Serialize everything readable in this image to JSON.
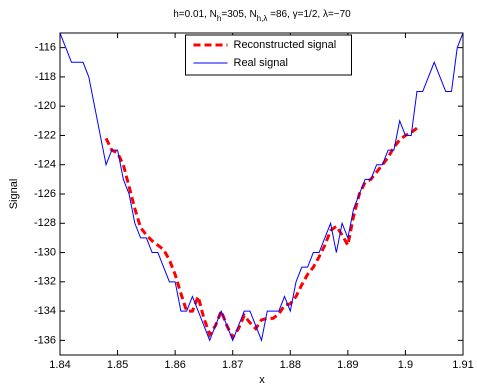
{
  "chart_data": {
    "type": "line",
    "title": [
      {
        "text": "h=0.01,  N"
      },
      {
        "text": "h",
        "sub": true
      },
      {
        "text": "=305,  N"
      },
      {
        "text": "h,λ",
        "sub": true
      },
      {
        "text": " =86,  γ=1/2,  λ=−70"
      }
    ],
    "xlabel": "x",
    "ylabel": "Signal",
    "xlim": [
      1.84,
      1.91
    ],
    "xticks": [
      1.84,
      1.85,
      1.86,
      1.87,
      1.88,
      1.89,
      1.9,
      1.91
    ],
    "ylim": [
      -137,
      -115
    ],
    "yticks": [
      -136,
      -134,
      -132,
      -130,
      -128,
      -126,
      -124,
      -122,
      -120,
      -118,
      -116
    ],
    "legend": "top",
    "series": [
      {
        "name": "Reconstructed signal",
        "color": "#ff0000",
        "style": "dashed",
        "x": [
          1.848,
          1.849,
          1.85,
          1.851,
          1.852,
          1.853,
          1.854,
          1.855,
          1.856,
          1.857,
          1.858,
          1.859,
          1.86,
          1.861,
          1.862,
          1.863,
          1.864,
          1.865,
          1.866,
          1.867,
          1.868,
          1.869,
          1.87,
          1.871,
          1.872,
          1.873,
          1.874,
          1.875,
          1.876,
          1.877,
          1.878,
          1.879,
          1.88,
          1.881,
          1.882,
          1.883,
          1.884,
          1.885,
          1.886,
          1.887,
          1.888,
          1.889,
          1.89,
          1.891,
          1.892,
          1.893,
          1.894,
          1.895,
          1.896,
          1.897,
          1.898,
          1.899,
          1.9,
          1.901,
          1.902
        ],
        "values": [
          -122.2,
          -123,
          -123.2,
          -124,
          -125.5,
          -127,
          -128.3,
          -128.8,
          -129.2,
          -129.5,
          -129.8,
          -130.5,
          -131.5,
          -132.8,
          -134,
          -134,
          -133,
          -134.5,
          -135.6,
          -135,
          -134,
          -135,
          -135.8,
          -135.2,
          -134.3,
          -134.8,
          -135.2,
          -134.6,
          -134.5,
          -134.5,
          -134.2,
          -133.6,
          -133.5,
          -133,
          -132.2,
          -131.5,
          -131,
          -130.3,
          -129.5,
          -128.5,
          -128.2,
          -128.8,
          -129.5,
          -127.5,
          -126,
          -125.2,
          -125,
          -124.5,
          -124,
          -123.5,
          -122.8,
          -122.3,
          -122,
          -121.8,
          -121.5
        ]
      },
      {
        "name": "Real signal",
        "color": "#0000ff",
        "style": "solid",
        "x": [
          1.84,
          1.841,
          1.842,
          1.843,
          1.844,
          1.845,
          1.846,
          1.847,
          1.848,
          1.849,
          1.85,
          1.851,
          1.852,
          1.853,
          1.854,
          1.855,
          1.856,
          1.857,
          1.858,
          1.859,
          1.86,
          1.861,
          1.862,
          1.863,
          1.864,
          1.865,
          1.866,
          1.867,
          1.868,
          1.869,
          1.87,
          1.871,
          1.872,
          1.873,
          1.874,
          1.875,
          1.876,
          1.877,
          1.878,
          1.879,
          1.88,
          1.881,
          1.882,
          1.883,
          1.884,
          1.885,
          1.886,
          1.887,
          1.888,
          1.889,
          1.89,
          1.891,
          1.892,
          1.893,
          1.894,
          1.895,
          1.896,
          1.897,
          1.898,
          1.899,
          1.9,
          1.901,
          1.902,
          1.903,
          1.904,
          1.905,
          1.906,
          1.907,
          1.908,
          1.909,
          1.91
        ],
        "values": [
          -115,
          -116,
          -117,
          -117,
          -117,
          -118,
          -120,
          -122,
          -124,
          -123,
          -123,
          -125,
          -126,
          -128,
          -129,
          -129,
          -130,
          -130,
          -131,
          -132,
          -132,
          -134,
          -134,
          -133,
          -134,
          -135,
          -136,
          -135,
          -134,
          -135,
          -136,
          -135,
          -134,
          -134,
          -135,
          -136,
          -134,
          -134,
          -134,
          -133,
          -134,
          -132,
          -131,
          -131,
          -130,
          -130,
          -129,
          -128,
          -130,
          -128,
          -129,
          -127,
          -126,
          -125,
          -125,
          -124,
          -124,
          -123,
          -123,
          -121,
          -122,
          -122,
          -119,
          -119,
          -118,
          -117,
          -118,
          -119,
          -119,
          -116,
          -115
        ]
      }
    ]
  }
}
